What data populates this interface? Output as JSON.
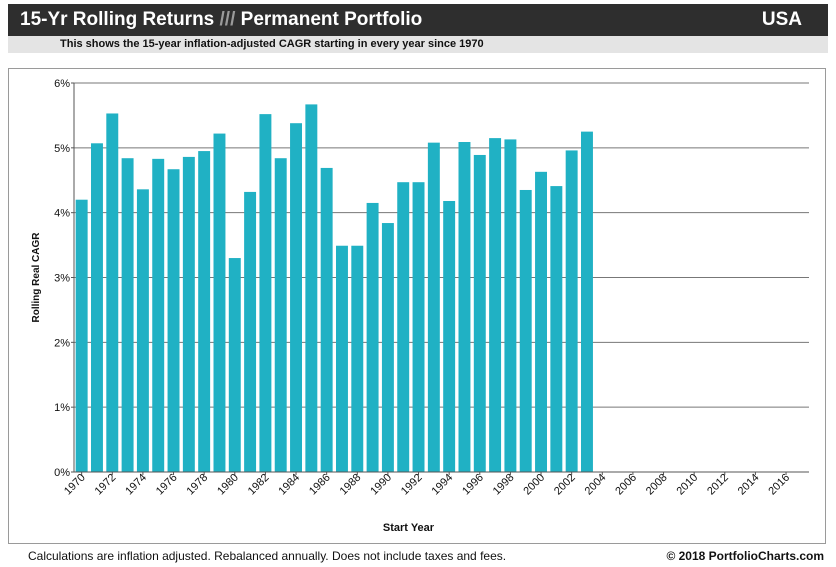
{
  "header": {
    "title_part1": "15-Yr Rolling Returns",
    "title_sep": "///",
    "title_part2": "Permanent Portfolio",
    "country": "USA",
    "subtitle": "This shows the 15-year inflation-adjusted CAGR starting in every year since 1970"
  },
  "footer": {
    "note": "Calculations are inflation adjusted.  Rebalanced annually.  Does not include taxes and fees.",
    "copyright": "© 2018 PortfolioCharts.com"
  },
  "colors": {
    "bar": "#20b1c4",
    "title_bg": "#2e2e2e",
    "subtitle_bg": "#e4e4e4"
  },
  "chart_data": {
    "type": "bar",
    "title": "15-Yr Rolling Returns /// Permanent Portfolio",
    "xlabel": "Start Year",
    "ylabel": "Rolling Real CAGR",
    "ylim": [
      0,
      6
    ],
    "yticks": [
      0,
      1,
      2,
      3,
      4,
      5,
      6
    ],
    "ytick_labels": [
      "0%",
      "1%",
      "2%",
      "3%",
      "4%",
      "5%",
      "6%"
    ],
    "grid": "horizontal",
    "categories": [
      1970,
      1971,
      1972,
      1973,
      1974,
      1975,
      1976,
      1977,
      1978,
      1979,
      1980,
      1981,
      1982,
      1983,
      1984,
      1985,
      1986,
      1987,
      1988,
      1989,
      1990,
      1991,
      1992,
      1993,
      1994,
      1995,
      1996,
      1997,
      1998,
      1999,
      2000,
      2001,
      2002,
      2003,
      2004,
      2005,
      2006,
      2007,
      2008,
      2009,
      2010,
      2011,
      2012,
      2013,
      2014,
      2015,
      2016,
      2017
    ],
    "xtick_labels": [
      "1970",
      "1972",
      "1974",
      "1976",
      "1978",
      "1980",
      "1982",
      "1984",
      "1986",
      "1988",
      "1990",
      "1992",
      "1994",
      "1996",
      "1998",
      "2000",
      "2002",
      "2004",
      "2006",
      "2008",
      "2010",
      "2012",
      "2014",
      "2016"
    ],
    "values": [
      4.2,
      5.07,
      5.53,
      4.84,
      4.36,
      4.83,
      4.67,
      4.86,
      4.95,
      5.22,
      3.3,
      4.32,
      5.52,
      4.84,
      5.38,
      5.67,
      4.69,
      3.49,
      3.49,
      4.15,
      3.84,
      4.47,
      4.47,
      5.08,
      4.18,
      5.09,
      4.89,
      5.15,
      5.13,
      4.35,
      4.63,
      4.41,
      4.96,
      5.25,
      null,
      null,
      null,
      null,
      null,
      null,
      null,
      null,
      null,
      null,
      null,
      null,
      null,
      null
    ]
  }
}
